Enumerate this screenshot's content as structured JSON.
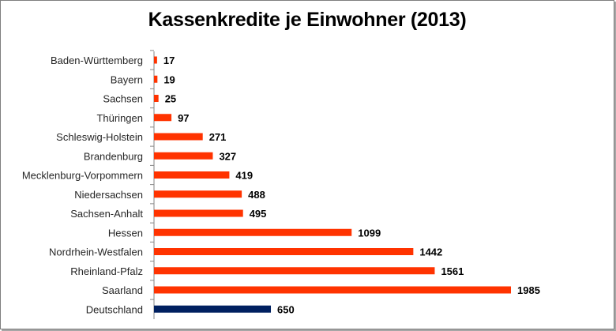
{
  "chart_data": {
    "type": "bar",
    "orientation": "horizontal",
    "title": "Kassenkredite je Einwohner (2013)",
    "categories": [
      "Baden-Württemberg",
      "Bayern",
      "Sachsen",
      "Thüringen",
      "Schleswig-Holstein",
      "Brandenburg",
      "Mecklenburg-Vorpommern",
      "Niedersachsen",
      "Sachsen-Anhalt",
      "Hessen",
      "Nordrhein-Westfalen",
      "Rheinland-Pfalz",
      "Saarland",
      "Deutschland"
    ],
    "values": [
      17,
      19,
      25,
      97,
      271,
      327,
      419,
      488,
      495,
      1099,
      1442,
      1561,
      1985,
      650
    ],
    "data_labels": [
      "17",
      "19",
      "25",
      "97",
      "271",
      "327",
      "419",
      "488",
      "495",
      "1099",
      "1442",
      "1561",
      "1985",
      "650"
    ],
    "bar_colors": [
      "#ff3300",
      "#ff3300",
      "#ff3300",
      "#ff3300",
      "#ff3300",
      "#ff3300",
      "#ff3300",
      "#ff3300",
      "#ff3300",
      "#ff3300",
      "#ff3300",
      "#ff3300",
      "#ff3300",
      "#002060"
    ],
    "xlim": [
      0,
      2000
    ],
    "grid": false,
    "legend": "none"
  }
}
